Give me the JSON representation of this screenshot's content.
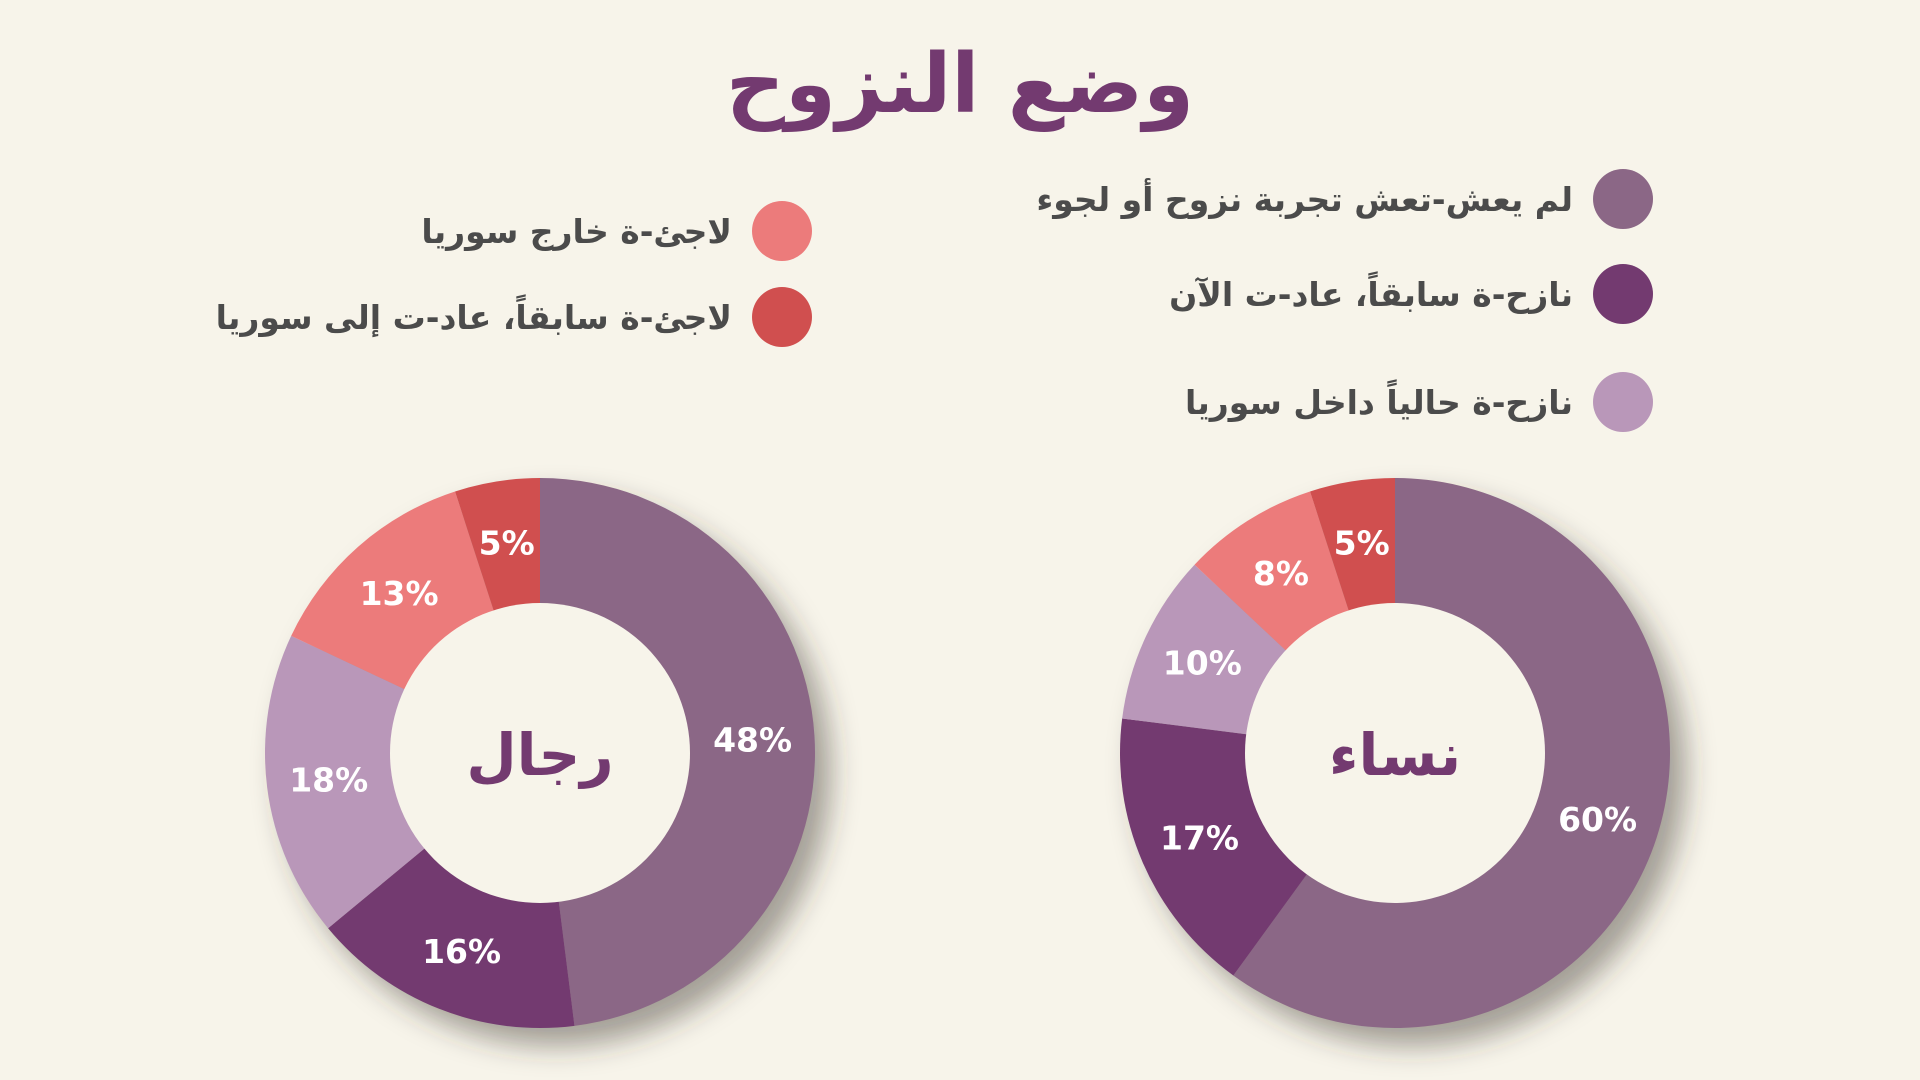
{
  "title": "وضع النزوح",
  "legend": {
    "items": [
      {
        "label": "لم يعش-تعش تجربة نزوح أو لجوء",
        "color": "#8b6786"
      },
      {
        "label": "نازح-ة سابقاً، عاد-ت الآن",
        "color": "#733a70"
      },
      {
        "label": "نازح-ة حالياً داخل سوريا",
        "color": "#b997b9"
      },
      {
        "label": "لاجئ-ة خارج سوريا",
        "color": "#ec7b7b"
      },
      {
        "label": "لاجئ-ة سابقاً، عاد-ت إلى سوريا",
        "color": "#d04f4f"
      }
    ]
  },
  "chart_data": [
    {
      "type": "pie",
      "title": "نساء",
      "categories": [
        "لم يعش-تعش تجربة نزوح أو لجوء",
        "نازح-ة سابقاً، عاد-ت الآن",
        "نازح-ة حالياً داخل سوريا",
        "لاجئ-ة خارج سوريا",
        "لاجئ-ة سابقاً، عاد-ت إلى سوريا"
      ],
      "values": [
        60,
        17,
        10,
        8,
        5
      ],
      "labels": [
        "60%",
        "17%",
        "10%",
        "8%",
        "5%"
      ],
      "colors": [
        "#8b6786",
        "#733a70",
        "#b997b9",
        "#ec7b7b",
        "#d04f4f"
      ],
      "donut": true
    },
    {
      "type": "pie",
      "title": "رجال",
      "categories": [
        "لم يعش-تعش تجربة نزوح أو لجوء",
        "نازح-ة سابقاً، عاد-ت الآن",
        "نازح-ة حالياً داخل سوريا",
        "لاجئ-ة خارج سوريا",
        "لاجئ-ة سابقاً، عاد-ت إلى سوريا"
      ],
      "values": [
        48,
        16,
        18,
        13,
        5
      ],
      "labels": [
        "48%",
        "16%",
        "18%",
        "13%",
        "5%"
      ],
      "colors": [
        "#8b6786",
        "#733a70",
        "#b997b9",
        "#ec7b7b",
        "#d04f4f"
      ],
      "donut": true
    }
  ]
}
